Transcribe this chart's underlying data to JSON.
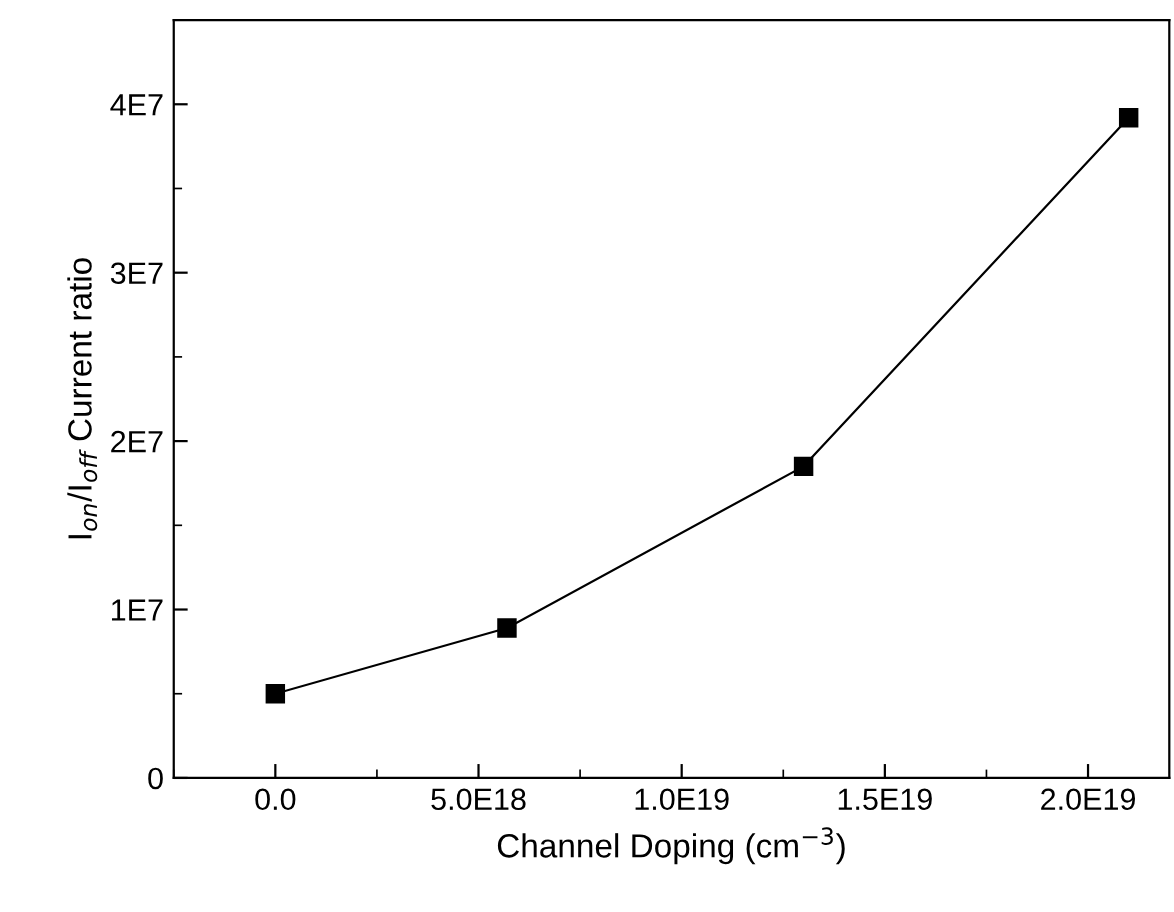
{
  "chart_data": {
    "type": "line",
    "xlabel": "Channel Doping (cm$^{−3}$)",
    "ylabel": "I$_{on}$/I$_{off}$ Current ratio",
    "x": [
      0,
      5.7e+18,
      1.3e+19,
      2.1e+19
    ],
    "series": [
      {
        "color": "#000000",
        "values": [
          5000000.0,
          8900000.0,
          18500000.0,
          39200000.0
        ]
      }
    ],
    "marker": "square",
    "line_style": "solid",
    "grid": false,
    "legend": false,
    "xlim": [
      -2.5e+18,
      2.2e+19
    ],
    "xticks": [
      {
        "value": 0,
        "label": "0.0"
      },
      {
        "value": 5e+18,
        "label": "5.0E18"
      },
      {
        "value": 1e+19,
        "label": "1.0E19"
      },
      {
        "value": 1.5e+19,
        "label": "1.5E19"
      },
      {
        "value": 2e+19,
        "label": "2.0E19"
      }
    ],
    "ylim": [
      0,
      45000000.0
    ],
    "yticks": [
      {
        "value": 0,
        "label": "0"
      },
      {
        "value": 10000000.0,
        "label": "1E7"
      },
      {
        "value": 20000000.0,
        "label": "2E7"
      },
      {
        "value": 30000000.0,
        "label": "3E7"
      },
      {
        "value": 40000000.0,
        "label": "4E7"
      }
    ]
  }
}
